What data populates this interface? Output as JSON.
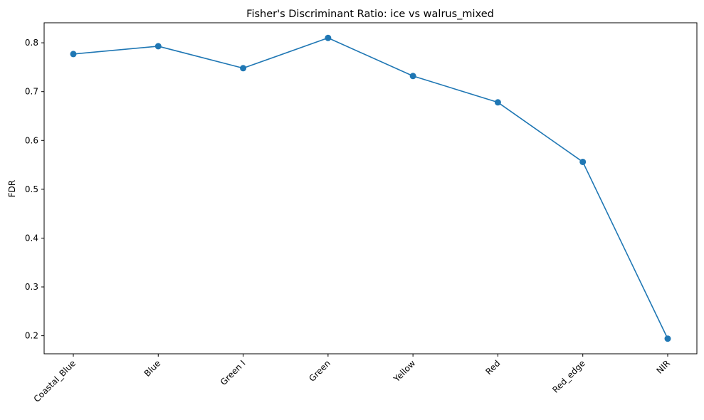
{
  "chart_data": {
    "type": "line",
    "title": "Fisher's Discriminant Ratio: ice vs walrus_mixed",
    "xlabel": "",
    "ylabel": "FDR",
    "categories": [
      "Coastal_Blue",
      "Blue",
      "Green I",
      "Green",
      "Yellow",
      "Red",
      "Red_edge",
      "NIR"
    ],
    "series": [
      {
        "values": [
          0.777,
          0.793,
          0.748,
          0.81,
          0.732,
          0.678,
          0.556,
          0.194
        ],
        "color": "#1f77b4",
        "marker": "circle"
      }
    ],
    "ylim": [
      0.163,
      0.841
    ],
    "yticks": [
      0.2,
      0.3,
      0.4,
      0.5,
      0.6,
      0.7,
      0.8
    ],
    "ytick_labels": [
      "0.2",
      "0.3",
      "0.4",
      "0.5",
      "0.6",
      "0.7",
      "0.8"
    ],
    "grid": false,
    "legend": "none"
  }
}
